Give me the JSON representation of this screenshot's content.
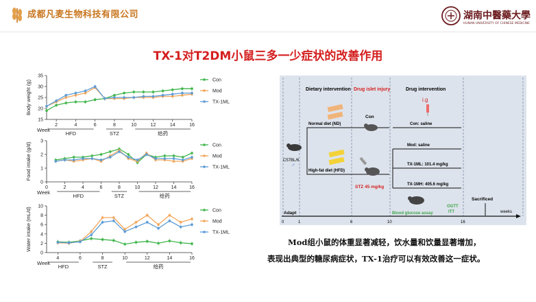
{
  "header": {
    "company_name": "成都凡麦生物科技有限公司",
    "university_cn": "湖南中醫藥大學",
    "university_en": "HUNAN UNIVERSITY OF CHINESE MEDICINE"
  },
  "slide": {
    "title": "TX-1对T2DM小鼠三多一少症状的改善作用",
    "caption_line1": "Mod组小鼠的体重显著减轻，饮水量和饮量显著增加，",
    "caption_line2": "表现出典型的糖尿病症状，TX-1治疗可以有效改善这一症状。"
  },
  "colors": {
    "con": "#3fb54a",
    "mod": "#f2a65a",
    "tx": "#5b9bd5",
    "title": "#d41e1e",
    "company": "#c8761e",
    "university": "#6b1b1e"
  },
  "chart_data": [
    {
      "type": "line",
      "ylabel": "Body weight (g)",
      "xlabel": "Week",
      "x": [
        1,
        2,
        3,
        4,
        5,
        6,
        7,
        8,
        9,
        10,
        11,
        12,
        13,
        14,
        15,
        16
      ],
      "xticks": [
        "2",
        "4",
        "6",
        "8",
        "10",
        "12",
        "14",
        "16"
      ],
      "ylim": [
        15,
        35
      ],
      "yticks": [
        "15",
        "20",
        "25",
        "30",
        "35"
      ],
      "phases": [
        "HFD",
        "STZ",
        "给药"
      ],
      "series": [
        {
          "name": "Con",
          "values": [
            19,
            21.5,
            22.5,
            23,
            23,
            24,
            24.5,
            26,
            27,
            27.5,
            27.5,
            27.5,
            28,
            28.5,
            29,
            29
          ]
        },
        {
          "name": "Mod",
          "values": [
            21,
            23,
            25,
            26,
            27,
            29.5,
            24.5,
            24.5,
            24.5,
            25,
            25,
            25,
            25.5,
            25.5,
            26,
            26.5
          ]
        },
        {
          "name": "TX-1ML",
          "values": [
            21,
            23.5,
            26,
            27,
            28,
            30,
            24.5,
            25,
            25,
            25,
            25.5,
            25.5,
            26,
            26.5,
            27,
            27
          ]
        }
      ]
    },
    {
      "type": "line",
      "ylabel": "Food intake (g/d)",
      "xlabel": "Week",
      "x": [
        1,
        2,
        3,
        4,
        5,
        6,
        7,
        8,
        9,
        10,
        11,
        12,
        13,
        14,
        15,
        16
      ],
      "xticks": [
        "0",
        "2",
        "4",
        "6",
        "8",
        "10",
        "12",
        "14",
        "16"
      ],
      "ylim": [
        0,
        3
      ],
      "yticks": [
        "0",
        "1",
        "2",
        "3"
      ],
      "phases": [
        "HFD",
        "STZ",
        "给药"
      ],
      "series": [
        {
          "name": "Con",
          "values": [
            1.6,
            1.7,
            1.8,
            1.8,
            1.9,
            2.0,
            2.2,
            2.4,
            2.0,
            1.4,
            2.0,
            1.8,
            1.9,
            1.9,
            1.8,
            2.1
          ]
        },
        {
          "name": "Mod",
          "values": [
            1.5,
            1.6,
            1.5,
            1.6,
            1.7,
            1.5,
            1.9,
            2.3,
            1.7,
            1.5,
            2.1,
            1.6,
            1.6,
            1.5,
            1.5,
            1.7
          ]
        },
        {
          "name": "TX-1ML",
          "values": [
            1.5,
            1.6,
            1.6,
            1.7,
            1.7,
            1.6,
            1.8,
            2.2,
            1.8,
            1.6,
            2.0,
            1.7,
            1.7,
            1.7,
            1.6,
            1.8
          ]
        }
      ]
    },
    {
      "type": "line",
      "ylabel": "Water intake (mL/d)",
      "xlabel": "Week",
      "x": [
        4,
        5,
        6,
        7,
        8,
        9,
        10,
        11,
        12,
        13,
        14,
        15,
        16
      ],
      "xticks": [
        "4",
        "6",
        "8",
        "10",
        "12",
        "14",
        "16"
      ],
      "ylim": [
        0,
        10
      ],
      "yticks": [
        "0",
        "2",
        "4",
        "6",
        "8",
        "10"
      ],
      "phases": [
        "HFD",
        "STZ",
        "给药"
      ],
      "series": [
        {
          "name": "Con",
          "values": [
            2.3,
            2.2,
            2.5,
            3.0,
            2.8,
            2.6,
            1.8,
            2.2,
            2.4,
            2.0,
            2.5,
            2.1,
            1.9
          ]
        },
        {
          "name": "Mod",
          "values": [
            2.1,
            2.0,
            2.4,
            4.5,
            7.5,
            7.5,
            5.0,
            6.5,
            8.0,
            6.0,
            8.0,
            6.5,
            7.2
          ]
        },
        {
          "name": "TX-1ML",
          "values": [
            2.2,
            2.1,
            2.3,
            3.8,
            6.5,
            6.8,
            4.5,
            5.5,
            6.5,
            5.2,
            6.8,
            5.5,
            6.0
          ]
        }
      ]
    }
  ],
  "diagram": {
    "timeline": {
      "headers": [
        "Dietary intervention",
        "Drug islet injury",
        "Drug intervention"
      ],
      "adapt": "Adapt",
      "week_ticks": [
        "0",
        "1",
        "6",
        "10",
        "16"
      ],
      "weeks_label": "weeks",
      "sacrificed": "Sacrificed",
      "ogtt": "OGTT",
      "itt": "ITT",
      "blood_glucose": "Blood glucose assay"
    },
    "labels": {
      "strain": "C57BL/6",
      "male": "♂",
      "normal_diet": "Normal diet (ND)",
      "hfd": "High-fat diet (HFD)",
      "stz": "STZ 45 mg/kg",
      "ig": "i.g",
      "con": "Con",
      "con_saline": "Con: saline",
      "mod_saline": "Mod: saline",
      "tx_l": "TX-1ML: 101.4 mg/kg",
      "tx_h": "TX-1MH: 405.6 mg/kg"
    }
  }
}
